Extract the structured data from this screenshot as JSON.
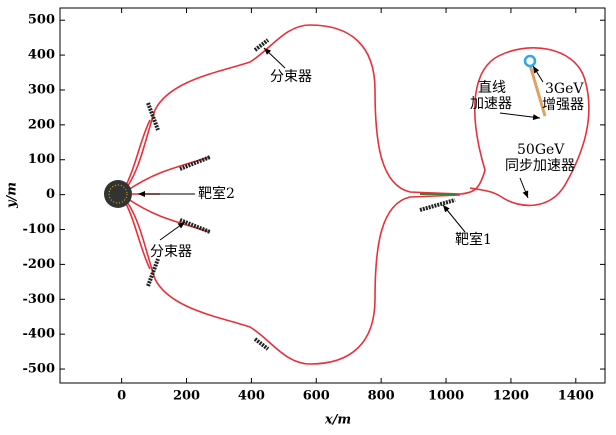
{
  "chart_data": {
    "type": "layout",
    "xlabel": "x/m",
    "ylabel": "y/m",
    "xlim": [
      -190,
      1490
    ],
    "ylim": [
      -540,
      535
    ],
    "xticks": [
      0,
      200,
      400,
      600,
      800,
      1000,
      1200,
      1400
    ],
    "yticks": [
      -500,
      -400,
      -300,
      -200,
      -100,
      0,
      100,
      200,
      300,
      400,
      500
    ],
    "annotations": [
      "分束器",
      "靶室2",
      "分束器",
      "靶室1",
      "直线",
      "加速器",
      "3GeV",
      "增强器",
      "50GeV",
      "同步加速器"
    ]
  }
}
